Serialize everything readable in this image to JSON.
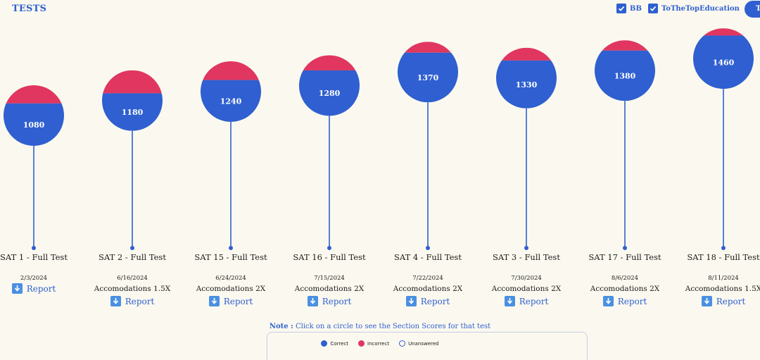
{
  "header": {
    "title": "TESTS",
    "filters": [
      {
        "label": "BB",
        "checked": true
      },
      {
        "label": "ToTheTopEducation",
        "checked": true
      }
    ],
    "button_label": "T"
  },
  "colors": {
    "correct": "#2f5fd0",
    "incorrect": "#e0365f",
    "accent": "#2f5fd0",
    "background": "#fbf9ef"
  },
  "tests": [
    {
      "name": "SAT 1 - Full Test",
      "date": "2/3/2024",
      "accommodation": "",
      "score": 1080,
      "incorrect_fraction": 0.3,
      "report_label": "Report"
    },
    {
      "name": "SAT 2 - Full Test",
      "date": "6/16/2024",
      "accommodation": "Accomodations 1.5X",
      "score": 1180,
      "incorrect_fraction": 0.38,
      "report_label": "Report"
    },
    {
      "name": "SAT 15 - Full Test",
      "date": "6/24/2024",
      "accommodation": "Accomodations 2X",
      "score": 1240,
      "incorrect_fraction": 0.31,
      "report_label": "Report"
    },
    {
      "name": "SAT 16 - Full Test",
      "date": "7/15/2024",
      "accommodation": "Accomodations 2X",
      "score": 1280,
      "incorrect_fraction": 0.25,
      "report_label": "Report"
    },
    {
      "name": "SAT 4 - Full Test",
      "date": "7/22/2024",
      "accommodation": "Accomodations 2X",
      "score": 1370,
      "incorrect_fraction": 0.18,
      "report_label": "Report"
    },
    {
      "name": "SAT 3 - Full Test",
      "date": "7/30/2024",
      "accommodation": "Accomodations 2X",
      "score": 1330,
      "incorrect_fraction": 0.21,
      "report_label": "Report"
    },
    {
      "name": "SAT 17 - Full Test",
      "date": "8/6/2024",
      "accommodation": "Accomodations 2X",
      "score": 1380,
      "incorrect_fraction": 0.17,
      "report_label": "Report"
    },
    {
      "name": "SAT 18 - Full Test",
      "date": "8/11/2024",
      "accommodation": "Accomodations 1.5X",
      "score": 1460,
      "incorrect_fraction": 0.12,
      "report_label": "Report"
    }
  ],
  "note": {
    "prefix": "Note :",
    "text": " Click on a circle to see the Section Scores for that test"
  },
  "legend": [
    {
      "label": "Correct",
      "color": "#2f5fd0",
      "hollow": false
    },
    {
      "label": "Incorrect",
      "color": "#e0365f",
      "hollow": false
    },
    {
      "label": "Unanswered",
      "color": "#2f5fd0",
      "hollow": true
    }
  ]
}
